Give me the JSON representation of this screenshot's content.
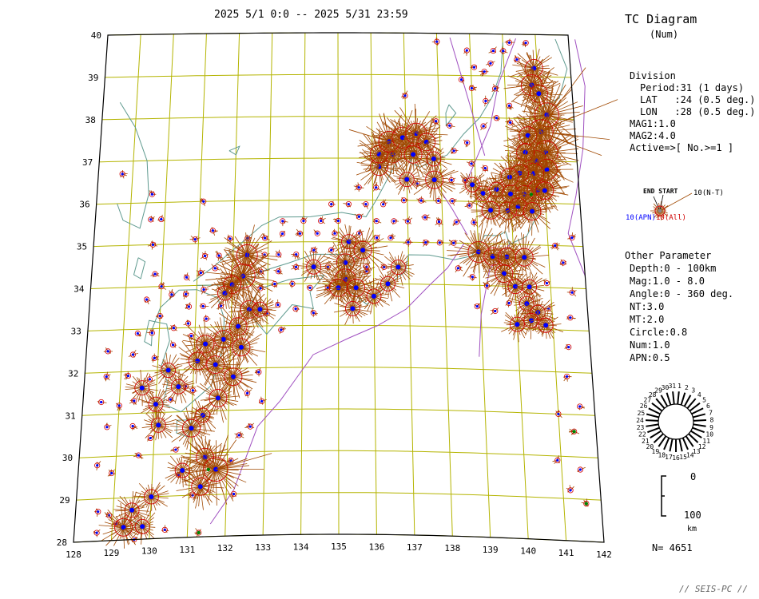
{
  "header": {
    "period": "2025 5/1 0:0 -- 2025 5/31 23:59",
    "title": "TC Diagram",
    "subtitle": "(Num)"
  },
  "division": {
    "heading": "Division",
    "lines": [
      "Period:31 (1 days)",
      "LAT   :24 (0.5 deg.)",
      "LON   :28 (0.5 deg.)"
    ],
    "mag1": "MAG1:1.0",
    "mag2": "MAG2:4.0",
    "active": "Active=>[ No.>=1 ]"
  },
  "legend_glyph": {
    "end_start": "END START",
    "nt": "10(N-T)",
    "apn": "10(APN)",
    "all": "10(All)"
  },
  "other_parameter": {
    "heading": "Other Parameter",
    "lines": [
      "Depth:0 - 100km",
      "Mag:1.0 - 8.0",
      "Angle:0 - 360 deg.",
      "NT:3.0",
      "MT:2.0",
      "Circle:0.8",
      "Num:1.0",
      "APN:0.5"
    ]
  },
  "clock_labels": [
    "1",
    "2",
    "3",
    "4",
    "5",
    "6",
    "7",
    "8",
    "9",
    "10",
    "11",
    "12",
    "13",
    "14",
    "15",
    "16",
    "17",
    "18",
    "19",
    "20",
    "21",
    "22",
    "23",
    "24",
    "25",
    "26",
    "27",
    "28",
    "29",
    "30",
    "31"
  ],
  "depth_scale": {
    "top": "0",
    "bottom": "100",
    "unit": "km"
  },
  "count": "N= 4651",
  "footer": "// SEIS-PC //",
  "axes": {
    "lat_labels": [
      "40",
      "39",
      "38",
      "37",
      "36",
      "35",
      "34",
      "33",
      "32",
      "31",
      "30",
      "29",
      "28"
    ],
    "lon_labels": [
      "128",
      "129",
      "130",
      "131",
      "132",
      "133",
      "134",
      "135",
      "136",
      "137",
      "138",
      "139",
      "140",
      "141",
      "142"
    ]
  },
  "colors": {
    "grid": "#b4b400",
    "coast": "#5f9a8f",
    "trench": "#a050c0",
    "spike": "#a04800",
    "circle": "#d00000",
    "dot_blue": "#0000ff",
    "dot_green": "#008000"
  },
  "cells": [
    [
      140.9,
      39.2,
      3
    ],
    [
      140.8,
      38.8,
      4
    ],
    [
      141.0,
      38.6,
      3
    ],
    [
      141.2,
      38.1,
      5
    ],
    [
      141.0,
      37.7,
      5
    ],
    [
      140.6,
      37.6,
      3
    ],
    [
      141.1,
      37.2,
      5
    ],
    [
      140.8,
      37.0,
      4
    ],
    [
      140.5,
      37.2,
      3
    ],
    [
      141.1,
      36.8,
      4
    ],
    [
      140.7,
      36.7,
      4
    ],
    [
      140.3,
      36.7,
      3
    ],
    [
      140.0,
      36.6,
      3
    ],
    [
      140.8,
      36.3,
      4
    ],
    [
      140.4,
      36.2,
      3
    ],
    [
      140.0,
      36.2,
      3
    ],
    [
      141.0,
      36.3,
      3
    ],
    [
      139.6,
      36.3,
      2
    ],
    [
      139.9,
      35.8,
      3
    ],
    [
      140.2,
      35.9,
      3
    ],
    [
      140.6,
      35.8,
      3
    ],
    [
      139.4,
      35.8,
      3
    ],
    [
      139.2,
      36.2,
      2
    ],
    [
      138.9,
      36.4,
      2
    ],
    [
      139.0,
      34.8,
      4
    ],
    [
      139.4,
      34.7,
      3
    ],
    [
      139.8,
      34.7,
      3
    ],
    [
      140.3,
      34.7,
      3
    ],
    [
      139.7,
      34.3,
      3
    ],
    [
      140.0,
      34.0,
      2
    ],
    [
      140.4,
      34.0,
      2
    ],
    [
      140.3,
      33.6,
      2
    ],
    [
      140.6,
      33.4,
      2
    ],
    [
      140.8,
      33.1,
      2
    ],
    [
      140.4,
      33.2,
      2
    ],
    [
      140.0,
      33.1,
      2
    ],
    [
      137.8,
      36.5,
      3
    ],
    [
      137.0,
      36.5,
      2
    ],
    [
      136.2,
      36.8,
      3
    ],
    [
      136.6,
      37.1,
      3
    ],
    [
      136.2,
      37.1,
      3
    ],
    [
      136.5,
      37.4,
      4
    ],
    [
      136.9,
      37.5,
      4
    ],
    [
      137.3,
      37.6,
      4
    ],
    [
      137.6,
      37.4,
      3
    ],
    [
      137.2,
      37.1,
      3
    ],
    [
      137.8,
      37.0,
      2
    ],
    [
      135.3,
      35.0,
      2
    ],
    [
      135.7,
      34.8,
      3
    ],
    [
      135.2,
      34.5,
      3
    ],
    [
      135.2,
      34.1,
      4
    ],
    [
      135.0,
      33.9,
      3
    ],
    [
      135.5,
      33.9,
      3
    ],
    [
      136.0,
      33.7,
      2
    ],
    [
      135.4,
      33.4,
      2
    ],
    [
      136.4,
      34.0,
      2
    ],
    [
      136.7,
      34.4,
      2
    ],
    [
      134.3,
      34.4,
      2
    ],
    [
      132.4,
      34.7,
      4
    ],
    [
      132.3,
      34.2,
      5
    ],
    [
      132.0,
      34.0,
      3
    ],
    [
      131.8,
      33.8,
      2
    ],
    [
      132.5,
      33.4,
      3
    ],
    [
      132.8,
      33.4,
      2
    ],
    [
      132.2,
      33.0,
      3
    ],
    [
      131.8,
      32.7,
      3
    ],
    [
      131.3,
      32.6,
      3
    ],
    [
      132.3,
      32.5,
      3
    ],
    [
      131.1,
      32.2,
      3
    ],
    [
      131.6,
      32.1,
      3
    ],
    [
      132.1,
      31.8,
      3
    ],
    [
      131.7,
      31.3,
      3
    ],
    [
      131.3,
      30.9,
      2
    ],
    [
      131.0,
      30.6,
      3
    ],
    [
      131.4,
      29.9,
      3
    ],
    [
      131.7,
      29.6,
      5
    ],
    [
      131.3,
      29.2,
      3
    ],
    [
      130.0,
      29.0,
      2
    ],
    [
      129.5,
      28.7,
      2
    ],
    [
      129.3,
      28.3,
      3
    ],
    [
      129.8,
      28.3,
      2
    ],
    [
      130.6,
      31.6,
      2
    ],
    [
      130.3,
      32.0,
      2
    ],
    [
      130.0,
      31.2,
      2
    ],
    [
      129.6,
      31.6,
      2
    ],
    [
      130.1,
      30.7,
      2
    ],
    [
      130.8,
      29.6,
      2
    ]
  ],
  "dots": [
    [
      128.6,
      28.2
    ],
    [
      128.6,
      28.7
    ],
    [
      129.1,
      28.4
    ],
    [
      128.9,
      28.6
    ],
    [
      129.6,
      28.0
    ],
    [
      130.4,
      28.2
    ],
    [
      131.3,
      28.1
    ],
    [
      128.5,
      29.8
    ],
    [
      128.9,
      29.6
    ],
    [
      129.6,
      30.0
    ],
    [
      130.7,
      29.5
    ],
    [
      131.1,
      29.0
    ],
    [
      132.2,
      29.0
    ],
    [
      132.1,
      29.8
    ],
    [
      128.7,
      30.7
    ],
    [
      129.4,
      30.7
    ],
    [
      129.9,
      30.4
    ],
    [
      130.6,
      30.1
    ],
    [
      132.3,
      30.4
    ],
    [
      132.6,
      30.6
    ],
    [
      128.5,
      31.3
    ],
    [
      129.0,
      31.2
    ],
    [
      129.4,
      31.3
    ],
    [
      130.4,
      31.3
    ],
    [
      131.0,
      31.5
    ],
    [
      132.5,
      31.4
    ],
    [
      132.9,
      31.2
    ],
    [
      128.6,
      31.9
    ],
    [
      129.2,
      31.9
    ],
    [
      129.8,
      31.8
    ],
    [
      130.8,
      31.6
    ],
    [
      132.8,
      31.9
    ],
    [
      128.6,
      32.5
    ],
    [
      129.3,
      32.4
    ],
    [
      129.9,
      32.3
    ],
    [
      130.4,
      32.6
    ],
    [
      130.9,
      32.8
    ],
    [
      129.4,
      32.9
    ],
    [
      129.8,
      32.9
    ],
    [
      130.4,
      33.0
    ],
    [
      130.8,
      33.1
    ],
    [
      131.3,
      33.2
    ],
    [
      133.0,
      33.3
    ],
    [
      133.4,
      32.9
    ],
    [
      130.8,
      33.5
    ],
    [
      131.2,
      33.5
    ],
    [
      131.7,
      33.5
    ],
    [
      133.3,
      33.5
    ],
    [
      133.8,
      33.4
    ],
    [
      134.3,
      33.3
    ],
    [
      130.3,
      33.8
    ],
    [
      130.7,
      33.8
    ],
    [
      131.2,
      33.9
    ],
    [
      132.8,
      33.9
    ],
    [
      133.2,
      34.0
    ],
    [
      133.7,
      34.0
    ],
    [
      134.2,
      33.9
    ],
    [
      134.7,
      33.9
    ],
    [
      130.7,
      34.2
    ],
    [
      131.1,
      34.3
    ],
    [
      131.5,
      34.4
    ],
    [
      132.8,
      34.3
    ],
    [
      133.3,
      34.3
    ],
    [
      133.8,
      34.4
    ],
    [
      134.7,
      34.4
    ],
    [
      135.8,
      34.3
    ],
    [
      131.2,
      34.7
    ],
    [
      131.6,
      34.7
    ],
    [
      132.9,
      34.7
    ],
    [
      133.3,
      34.7
    ],
    [
      133.8,
      34.7
    ],
    [
      134.3,
      34.8
    ],
    [
      134.8,
      34.8
    ],
    [
      135.8,
      34.4
    ],
    [
      136.3,
      34.4
    ],
    [
      131.9,
      35.1
    ],
    [
      132.4,
      35.1
    ],
    [
      132.9,
      35.1
    ],
    [
      133.4,
      35.2
    ],
    [
      133.9,
      35.2
    ],
    [
      134.4,
      35.2
    ],
    [
      134.9,
      35.2
    ],
    [
      135.6,
      35.2
    ],
    [
      136.1,
      35.1
    ],
    [
      136.5,
      35.1
    ],
    [
      137.0,
      35.0
    ],
    [
      137.5,
      35.0
    ],
    [
      137.9,
      35.0
    ],
    [
      138.3,
      35.0
    ],
    [
      133.4,
      35.5
    ],
    [
      134.0,
      35.5
    ],
    [
      134.5,
      35.5
    ],
    [
      135.0,
      35.5
    ],
    [
      135.6,
      35.6
    ],
    [
      136.1,
      35.5
    ],
    [
      136.6,
      35.5
    ],
    [
      137.0,
      35.5
    ],
    [
      137.5,
      35.6
    ],
    [
      137.9,
      35.5
    ],
    [
      138.4,
      35.5
    ],
    [
      138.9,
      35.5
    ],
    [
      134.8,
      35.9
    ],
    [
      135.3,
      35.9
    ],
    [
      135.8,
      35.9
    ],
    [
      136.3,
      35.9
    ],
    [
      136.9,
      36.0
    ],
    [
      137.4,
      36.0
    ],
    [
      137.9,
      36.0
    ],
    [
      138.3,
      36.0
    ],
    [
      138.8,
      35.9
    ],
    [
      135.6,
      36.3
    ],
    [
      136.1,
      36.3
    ],
    [
      137.3,
      36.4
    ],
    [
      138.3,
      36.5
    ],
    [
      138.7,
      36.5
    ],
    [
      137.9,
      37.9
    ],
    [
      138.3,
      37.8
    ],
    [
      138.8,
      37.4
    ],
    [
      139.3,
      37.8
    ],
    [
      139.7,
      38.0
    ],
    [
      139.4,
      38.4
    ],
    [
      139.0,
      38.7
    ],
    [
      138.7,
      38.9
    ],
    [
      139.1,
      39.2
    ],
    [
      139.6,
      39.3
    ],
    [
      140.0,
      39.6
    ],
    [
      140.4,
      39.4
    ],
    [
      139.7,
      39.6
    ],
    [
      139.4,
      39.1
    ],
    [
      138.9,
      39.6
    ],
    [
      138.0,
      39.8
    ],
    [
      137.0,
      38.5
    ],
    [
      138.4,
      37.2
    ],
    [
      138.9,
      36.9
    ],
    [
      139.3,
      36.8
    ],
    [
      140.2,
      39.8
    ],
    [
      140.7,
      39.8
    ],
    [
      139.7,
      38.7
    ],
    [
      140.1,
      38.3
    ],
    [
      140.1,
      37.9
    ],
    [
      140.9,
      34.1
    ],
    [
      140.9,
      33.5
    ],
    [
      141.5,
      33.3
    ],
    [
      141.4,
      32.6
    ],
    [
      141.3,
      31.9
    ],
    [
      141.6,
      31.2
    ],
    [
      141.4,
      30.6
    ],
    [
      141.5,
      29.7
    ],
    [
      141.2,
      29.2
    ],
    [
      141.6,
      28.9
    ],
    [
      140.9,
      29.9
    ],
    [
      141.0,
      31.0
    ],
    [
      138.4,
      34.4
    ],
    [
      138.8,
      34.2
    ],
    [
      139.2,
      34.0
    ],
    [
      138.9,
      33.5
    ],
    [
      139.4,
      33.4
    ],
    [
      139.8,
      33.6
    ],
    [
      141.7,
      35.2
    ],
    [
      141.2,
      35.0
    ],
    [
      141.4,
      34.6
    ],
    [
      141.6,
      33.9
    ],
    [
      128.7,
      36.7
    ],
    [
      129.6,
      36.2
    ],
    [
      129.6,
      35.6
    ],
    [
      129.9,
      35.6
    ],
    [
      129.7,
      35.0
    ],
    [
      130.9,
      35.1
    ],
    [
      131.4,
      35.3
    ],
    [
      131.1,
      36.0
    ],
    [
      129.8,
      34.3
    ],
    [
      130.0,
      34.0
    ],
    [
      129.6,
      33.7
    ],
    [
      130.0,
      33.3
    ]
  ]
}
